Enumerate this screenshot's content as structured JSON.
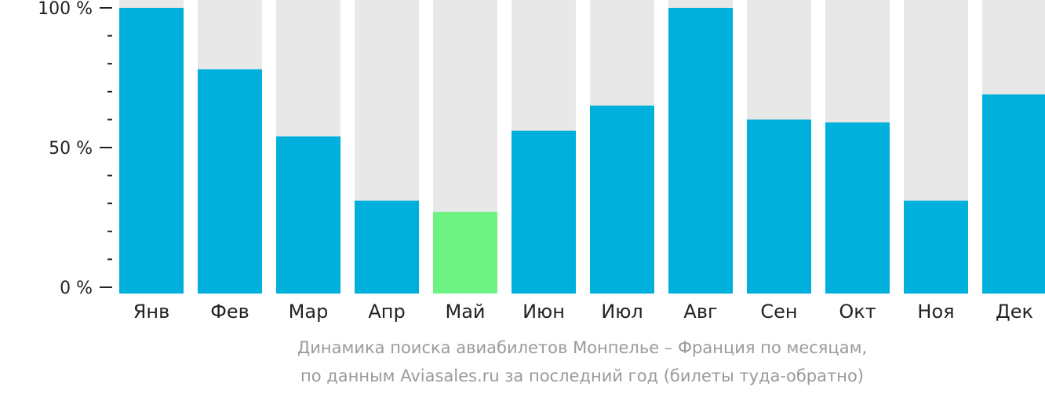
{
  "chart_data": {
    "type": "bar",
    "categories": [
      "Янв",
      "Фев",
      "Мар",
      "Апр",
      "Май",
      "Июн",
      "Июл",
      "Авг",
      "Сен",
      "Окт",
      "Ноя",
      "Дек"
    ],
    "values": [
      100,
      78,
      54,
      31,
      27,
      56,
      65,
      100,
      60,
      59,
      31,
      69
    ],
    "highlight_index": 4,
    "ylim": [
      0,
      100
    ],
    "yticks": [
      {
        "value": 0,
        "label": "0 %"
      },
      {
        "value": 50,
        "label": "50 %"
      },
      {
        "value": 100,
        "label": "100 %"
      }
    ],
    "minor_tick_step": 10,
    "colors": {
      "bar": "#00b0dc",
      "highlight": "#6df283",
      "background_bar": "#e8e8e8",
      "axis": "#222222",
      "caption": "#9a9a9a"
    },
    "grid": false,
    "legend": "none"
  },
  "caption": {
    "line1": "Динамика поиска авиабилетов Монпелье – Франция по месяцам,",
    "line2": "по данным Aviasales.ru за последний год (билеты туда-обратно)"
  }
}
